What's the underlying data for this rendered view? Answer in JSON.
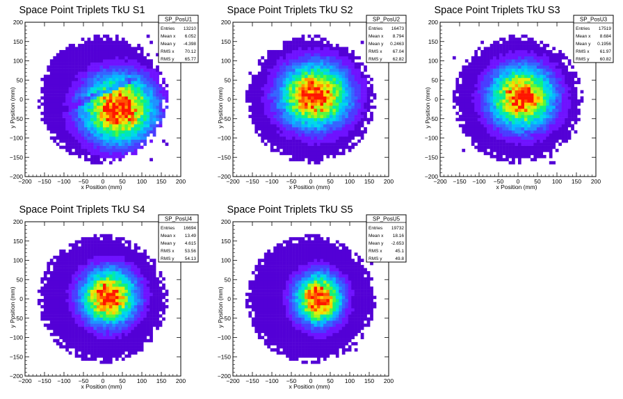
{
  "palette": [
    "#5300d6",
    "#6f12ff",
    "#4a3cff",
    "#3565ff",
    "#1e92ff",
    "#06b8ff",
    "#00d8ea",
    "#00e8b4",
    "#13f27a",
    "#58f73c",
    "#a6f51b",
    "#e2ee0b",
    "#ffd200",
    "#ff9a00",
    "#ff5400",
    "#ff1500"
  ],
  "chart_data": [
    {
      "type": "heatmap",
      "title": "Space Point Triplets TkU S1",
      "xlabel": "x Position (mm)",
      "ylabel": "y Position (mm)",
      "xlim": [
        -200,
        200
      ],
      "ylim": [
        -200,
        200
      ],
      "xticks": [
        -200,
        -150,
        -100,
        -50,
        0,
        50,
        100,
        150,
        200
      ],
      "yticks": [
        -200,
        -150,
        -100,
        -50,
        0,
        50,
        100,
        150,
        200
      ],
      "xtick_labels": [
        "−200",
        "−150",
        "−100",
        "−50",
        "0",
        "50",
        "100",
        "150",
        "200"
      ],
      "ytick_labels": [
        "−200",
        "−150",
        "−100",
        "−50",
        "0",
        "50",
        "100",
        "150",
        "200"
      ],
      "stats": {
        "name": "SP_PosU1",
        "rows": [
          {
            "label": "Entries",
            "value": "13210"
          },
          {
            "label": "Mean x",
            "value": "6.052"
          },
          {
            "label": "Mean y",
            "value": "-4.398"
          },
          {
            "label": "RMS x",
            "value": "70.12"
          },
          {
            "label": "RMS y",
            "value": "65.77"
          }
        ]
      },
      "mean_x": 6.052,
      "mean_y": -4.398,
      "rms_x": 70.12,
      "rms_y": 65.77,
      "outer_radius_mm": 160,
      "peak_x": 40,
      "peak_y": -25,
      "has_gap_band": true,
      "seed": 11
    },
    {
      "type": "heatmap",
      "title": "Space Point Triplets TkU S2",
      "xlabel": "x Position (mm)",
      "ylabel": "y Position (mm)",
      "xlim": [
        -200,
        200
      ],
      "ylim": [
        -200,
        200
      ],
      "xticks": [
        -200,
        -150,
        -100,
        -50,
        0,
        50,
        100,
        150,
        200
      ],
      "yticks": [
        -200,
        -150,
        -100,
        -50,
        0,
        50,
        100,
        150,
        200
      ],
      "xtick_labels": [
        "−200",
        "−150",
        "−100",
        "−50",
        "0",
        "50",
        "100",
        "150",
        "200"
      ],
      "ytick_labels": [
        "−200",
        "−150",
        "−100",
        "−50",
        "0",
        "50",
        "100",
        "150",
        "200"
      ],
      "stats": {
        "name": "SP_PosU2",
        "rows": [
          {
            "label": "Entries",
            "value": "16473"
          },
          {
            "label": "Mean x",
            "value": "8.794"
          },
          {
            "label": "Mean y",
            "value": "0.2463"
          },
          {
            "label": "RMS x",
            "value": "67.04"
          },
          {
            "label": "RMS y",
            "value": "62.82"
          }
        ]
      },
      "mean_x": 8.794,
      "mean_y": 0.2463,
      "rms_x": 67.04,
      "rms_y": 62.82,
      "outer_radius_mm": 160,
      "peak_x": 10,
      "peak_y": 10,
      "has_gap_band": false,
      "seed": 23
    },
    {
      "type": "heatmap",
      "title": "Space Point Triplets TkU S3",
      "xlabel": "x Position (mm)",
      "ylabel": "y Position (mm)",
      "xlim": [
        -200,
        200
      ],
      "ylim": [
        -200,
        200
      ],
      "xticks": [
        -200,
        -150,
        -100,
        -50,
        0,
        50,
        100,
        150,
        200
      ],
      "yticks": [
        -200,
        -150,
        -100,
        -50,
        0,
        50,
        100,
        150,
        200
      ],
      "xtick_labels": [
        "−200",
        "−150",
        "−100",
        "−50",
        "0",
        "50",
        "100",
        "150",
        "200"
      ],
      "ytick_labels": [
        "−200",
        "−150",
        "−100",
        "−50",
        "0",
        "50",
        "100",
        "150",
        "200"
      ],
      "stats": {
        "name": "SP_PosU3",
        "rows": [
          {
            "label": "Entries",
            "value": "17519"
          },
          {
            "label": "Mean x",
            "value": "8.684"
          },
          {
            "label": "Mean y",
            "value": "0.1956"
          },
          {
            "label": "RMS x",
            "value": "61.97"
          },
          {
            "label": "RMS y",
            "value": "60.82"
          }
        ]
      },
      "mean_x": 8.684,
      "mean_y": 0.1956,
      "rms_x": 61.97,
      "rms_y": 60.82,
      "outer_radius_mm": 160,
      "peak_x": 10,
      "peak_y": 5,
      "has_gap_band": false,
      "seed": 37
    },
    {
      "type": "heatmap",
      "title": "Space Point Triplets TkU S4",
      "xlabel": "x Position (mm)",
      "ylabel": "y Position (mm)",
      "xlim": [
        -200,
        200
      ],
      "ylim": [
        -200,
        200
      ],
      "xticks": [
        -200,
        -150,
        -100,
        -50,
        0,
        50,
        100,
        150,
        200
      ],
      "yticks": [
        -200,
        -150,
        -100,
        -50,
        0,
        50,
        100,
        150,
        200
      ],
      "xtick_labels": [
        "−200",
        "−150",
        "−100",
        "−50",
        "0",
        "50",
        "100",
        "150",
        "200"
      ],
      "ytick_labels": [
        "−200",
        "−150",
        "−100",
        "−50",
        "0",
        "50",
        "100",
        "150",
        "200"
      ],
      "stats": {
        "name": "SP_PosU4",
        "rows": [
          {
            "label": "Entries",
            "value": "16694"
          },
          {
            "label": "Mean x",
            "value": "13.49"
          },
          {
            "label": "Mean y",
            "value": "4.615"
          },
          {
            "label": "RMS x",
            "value": "53.56"
          },
          {
            "label": "RMS y",
            "value": "54.13"
          }
        ]
      },
      "mean_x": 13.49,
      "mean_y": 4.615,
      "rms_x": 53.56,
      "rms_y": 54.13,
      "outer_radius_mm": 160,
      "peak_x": 15,
      "peak_y": 5,
      "has_gap_band": false,
      "seed": 53
    },
    {
      "type": "heatmap",
      "title": "Space Point Triplets TkU S5",
      "xlabel": "x Position (mm)",
      "ylabel": "y Position (mm)",
      "xlim": [
        -200,
        200
      ],
      "ylim": [
        -200,
        200
      ],
      "xticks": [
        -200,
        -150,
        -100,
        -50,
        0,
        50,
        100,
        150,
        200
      ],
      "yticks": [
        -200,
        -150,
        -100,
        -50,
        0,
        50,
        100,
        150,
        200
      ],
      "xtick_labels": [
        "−200",
        "−150",
        "−100",
        "−50",
        "0",
        "50",
        "100",
        "150",
        "200"
      ],
      "ytick_labels": [
        "−200",
        "−150",
        "−100",
        "−50",
        "0",
        "50",
        "100",
        "150",
        "200"
      ],
      "stats": {
        "name": "SP_PosU5",
        "rows": [
          {
            "label": "Entries",
            "value": "19732"
          },
          {
            "label": "Mean x",
            "value": "18.16"
          },
          {
            "label": "Mean y",
            "value": "-2.653"
          },
          {
            "label": "RMS x",
            "value": "45.1"
          },
          {
            "label": "RMS y",
            "value": "49.8"
          }
        ]
      },
      "mean_x": 18.16,
      "mean_y": -2.653,
      "rms_x": 45.1,
      "rms_y": 49.8,
      "outer_radius_mm": 160,
      "peak_x": 20,
      "peak_y": 0,
      "has_gap_band": false,
      "seed": 71
    }
  ]
}
